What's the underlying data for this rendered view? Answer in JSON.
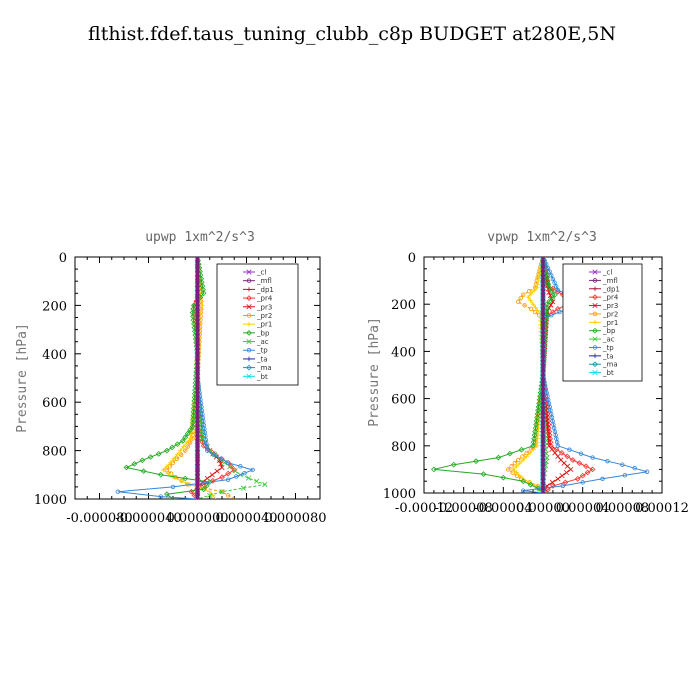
{
  "title": "flthist.fdef.taus_tuning_clubb_c8p  BUDGET at280E,5N",
  "chart_data": [
    {
      "type": "line",
      "title": "upwp   1xm^2/s^3",
      "ylabel": "Pressure  [hPa]",
      "xlim": [
        -0.0001,
        0.0001
      ],
      "ylim": [
        1000,
        0
      ],
      "x_ticks": [
        -8e-05,
        -4e-05,
        0,
        4e-05,
        8e-05
      ],
      "x_tick_labels": [
        "-0.000080",
        "-0.000040",
        "0.000000",
        "0.000040",
        "0.000080"
      ],
      "y_ticks": [
        0,
        200,
        400,
        600,
        800,
        1000
      ],
      "y_tick_labels": [
        "0",
        "200",
        "400",
        "600",
        "800",
        "1000"
      ],
      "legend": [
        "_cl",
        "_mfl",
        "_dp1",
        "_pr4",
        "_pr3",
        "_pr2",
        "_pr1",
        "_bp",
        "_ac",
        "_tp",
        "_ta",
        "_ma",
        "_bt"
      ],
      "series": [
        {
          "name": "_cl",
          "color": "#9933cc",
          "p": [
            0,
            200,
            400,
            600,
            800,
            900,
            1000
          ],
          "x": [
            0,
            0,
            0,
            0,
            0,
            0,
            0
          ]
        },
        {
          "name": "_mfl",
          "color": "#7a1f7a",
          "p": [
            0,
            200,
            400,
            600,
            800,
            900,
            1000
          ],
          "x": [
            0,
            0,
            0,
            0,
            0,
            0,
            0
          ]
        },
        {
          "name": "_dp1",
          "color": "#aa1133",
          "p": [
            0,
            200,
            400,
            600,
            800,
            900,
            1000
          ],
          "x": [
            0,
            0,
            0,
            0,
            0,
            0,
            0
          ]
        },
        {
          "name": "_pr4",
          "color": "#ff3333",
          "p": [
            0,
            150,
            200,
            300,
            500,
            700,
            780,
            820,
            850,
            880,
            910,
            940,
            970,
            1000
          ],
          "x": [
            0,
            1e-06,
            -2e-06,
            0,
            0,
            0,
            5e-06,
            1.5e-05,
            2.5e-05,
            3e-05,
            2e-05,
            5e-06,
            -5e-06,
            0
          ]
        },
        {
          "name": "_pr3",
          "color": "#dd1111",
          "p": [
            0,
            200,
            500,
            750,
            800,
            840,
            870,
            900,
            930,
            960,
            1000
          ],
          "x": [
            0,
            0,
            0,
            4e-06,
            1e-05,
            1.8e-05,
            2e-05,
            1.2e-05,
            4e-06,
            0,
            0
          ]
        },
        {
          "name": "_pr2",
          "color": "#ff9900",
          "p": [
            0,
            200,
            500,
            750,
            800,
            850,
            880,
            910,
            940,
            970,
            1000
          ],
          "x": [
            0,
            3e-06,
            0,
            -4e-06,
            -1e-05,
            -2e-05,
            -2.5e-05,
            -1.8e-05,
            -8e-06,
            2e-05,
            3e-05
          ]
        },
        {
          "name": "_pr1",
          "color": "#ffcc00",
          "p": [
            0,
            150,
            200,
            250,
            500,
            750,
            800,
            850,
            880,
            910,
            940,
            970,
            1000
          ],
          "x": [
            0,
            2e-06,
            4e-06,
            2e-06,
            0,
            -6e-06,
            -1.4e-05,
            -2.2e-05,
            -2.8e-05,
            -2e-05,
            -6e-06,
            1e-05,
            1.5e-05
          ]
        },
        {
          "name": "_bp",
          "color": "#22aa22",
          "p": [
            0,
            150,
            200,
            230,
            400,
            700,
            760,
            800,
            840,
            870,
            900,
            930,
            960,
            980,
            1000
          ],
          "x": [
            0,
            5e-06,
            -3e-06,
            -4e-06,
            0,
            -4e-06,
            -1.2e-05,
            -2.5e-05,
            -4.5e-05,
            -5.8e-05,
            -3e-05,
            1e-05,
            5e-06,
            -2.5e-05,
            -2e-05
          ]
        },
        {
          "name": "_ac",
          "color": "#33cc33",
          "p": [
            0,
            200,
            500,
            750,
            800,
            850,
            900,
            940,
            970,
            1000
          ],
          "x": [
            0,
            0,
            0,
            4e-06,
            1e-05,
            2.2e-05,
            3.5e-05,
            5.5e-05,
            2e-05,
            0
          ]
        },
        {
          "name": "_tp",
          "color": "#3388dd",
          "p": [
            0,
            200,
            500,
            800,
            850,
            880,
            920,
            950,
            970,
            990,
            1000
          ],
          "x": [
            0,
            0,
            0,
            8e-06,
            2.5e-05,
            4.5e-05,
            2.5e-05,
            -2e-05,
            -6.5e-05,
            -3e-05,
            0
          ]
        },
        {
          "name": "_ta",
          "color": "#2222aa",
          "p": [
            0,
            200,
            500,
            800,
            900,
            1000
          ],
          "x": [
            0,
            0,
            0,
            0,
            0,
            0
          ]
        },
        {
          "name": "_ma",
          "color": "#1199aa",
          "p": [
            0,
            200,
            500,
            800,
            900,
            1000
          ],
          "x": [
            0,
            0,
            0,
            0,
            0,
            0
          ]
        },
        {
          "name": "_bt",
          "color": "#00ddee",
          "p": [
            0,
            200,
            500,
            800,
            900,
            1000
          ],
          "x": [
            0,
            0,
            0,
            0,
            0,
            0
          ]
        }
      ]
    },
    {
      "type": "line",
      "title": "vpwp   1xm^2/s^3",
      "ylabel": "Pressure  [hPa]",
      "xlim": [
        -0.00012,
        0.00012
      ],
      "ylim": [
        1000,
        0
      ],
      "x_ticks": [
        -0.00012,
        -8e-05,
        -4e-05,
        0,
        4e-05,
        8e-05,
        0.00012
      ],
      "x_tick_labels": [
        "-0.00012",
        "-0.00008",
        "-0.00004",
        "0.00000",
        "0.00004",
        "0.00008",
        "0.00012"
      ],
      "y_ticks": [
        0,
        200,
        400,
        600,
        800,
        1000
      ],
      "y_tick_labels": [
        "0",
        "200",
        "400",
        "600",
        "800",
        "1000"
      ],
      "legend": [
        "_cl",
        "_mfl",
        "_dp1",
        "_pr4",
        "_pr3",
        "_pr2",
        "_pr1",
        "_bp",
        "_ac",
        "_tp",
        "_ta",
        "_ma",
        "_bt"
      ],
      "series": [
        {
          "name": "_cl",
          "color": "#9933cc",
          "p": [
            0,
            200,
            400,
            600,
            800,
            900,
            1000
          ],
          "x": [
            0,
            0,
            0,
            0,
            0,
            0,
            0
          ]
        },
        {
          "name": "_mfl",
          "color": "#7a1f7a",
          "p": [
            0,
            200,
            400,
            600,
            800,
            900,
            1000
          ],
          "x": [
            0,
            0,
            0,
            0,
            0,
            0,
            0
          ]
        },
        {
          "name": "_dp1",
          "color": "#aa1133",
          "p": [
            0,
            200,
            400,
            600,
            800,
            900,
            1000
          ],
          "x": [
            0,
            0,
            0,
            0,
            0,
            0,
            0
          ]
        },
        {
          "name": "_pr4",
          "color": "#ff3333",
          "p": [
            0,
            120,
            160,
            190,
            220,
            260,
            500,
            800,
            860,
            900,
            940,
            970,
            1000
          ],
          "x": [
            0,
            5e-06,
            2e-05,
            3e-05,
            1.5e-05,
            0,
            0,
            8e-06,
            3e-05,
            5e-05,
            3.5e-05,
            1e-05,
            0
          ]
        },
        {
          "name": "_pr3",
          "color": "#dd1111",
          "p": [
            0,
            150,
            190,
            230,
            500,
            800,
            860,
            900,
            940,
            970,
            1000
          ],
          "x": [
            0,
            6e-06,
            1e-05,
            4e-06,
            0,
            6e-06,
            1.8e-05,
            2.8e-05,
            1.5e-05,
            4e-06,
            0
          ]
        },
        {
          "name": "_pr2",
          "color": "#ff9900",
          "p": [
            0,
            130,
            160,
            190,
            220,
            260,
            500,
            800,
            860,
            900,
            940,
            970,
            1000
          ],
          "x": [
            0,
            -8e-06,
            -2e-05,
            -2.5e-05,
            -1.2e-05,
            0,
            0,
            -8e-06,
            -2.5e-05,
            -3.5e-05,
            -2.2e-05,
            -5e-06,
            0
          ]
        },
        {
          "name": "_pr1",
          "color": "#ffcc00",
          "p": [
            0,
            130,
            170,
            200,
            240,
            500,
            800,
            860,
            900,
            940,
            970,
            1000
          ],
          "x": [
            0,
            -6e-06,
            -1.5e-05,
            -1e-05,
            -3e-06,
            0,
            -6e-06,
            -2e-05,
            -3e-05,
            -2e-05,
            -8e-06,
            0
          ]
        },
        {
          "name": "_bp",
          "color": "#22aa22",
          "p": [
            0,
            130,
            160,
            200,
            500,
            800,
            850,
            880,
            900,
            920,
            950,
            980,
            1000
          ],
          "x": [
            0,
            6e-06,
            1.2e-05,
            4e-06,
            0,
            -1e-05,
            -4.5e-05,
            -9e-05,
            -0.00011,
            -6e-05,
            -2e-05,
            -5e-06,
            0
          ]
        },
        {
          "name": "_ac",
          "color": "#33cc33",
          "p": [
            0,
            200,
            500,
            800,
            850,
            900,
            950,
            1000
          ],
          "x": [
            0,
            0,
            0,
            2e-06,
            4e-06,
            2e-06,
            0,
            0
          ]
        },
        {
          "name": "_tp",
          "color": "#3388dd",
          "p": [
            0,
            140,
            170,
            190,
            220,
            260,
            500,
            800,
            850,
            880,
            910,
            940,
            970,
            990,
            1000
          ],
          "x": [
            0,
            1.5e-05,
            3e-05,
            4.5e-05,
            2.5e-05,
            0,
            0,
            1.5e-05,
            5e-05,
            8e-05,
            0.000105,
            6e-05,
            2e-05,
            -2e-05,
            0
          ]
        },
        {
          "name": "_ta",
          "color": "#2222aa",
          "p": [
            0,
            200,
            500,
            800,
            900,
            1000
          ],
          "x": [
            0,
            0,
            0,
            0,
            0,
            0
          ]
        },
        {
          "name": "_ma",
          "color": "#1199aa",
          "p": [
            0,
            200,
            500,
            800,
            900,
            1000
          ],
          "x": [
            0,
            0,
            0,
            0,
            0,
            0
          ]
        },
        {
          "name": "_bt",
          "color": "#00ddee",
          "p": [
            0,
            200,
            500,
            800,
            900,
            1000
          ],
          "x": [
            0,
            0,
            0,
            0,
            0,
            0
          ]
        }
      ]
    }
  ]
}
